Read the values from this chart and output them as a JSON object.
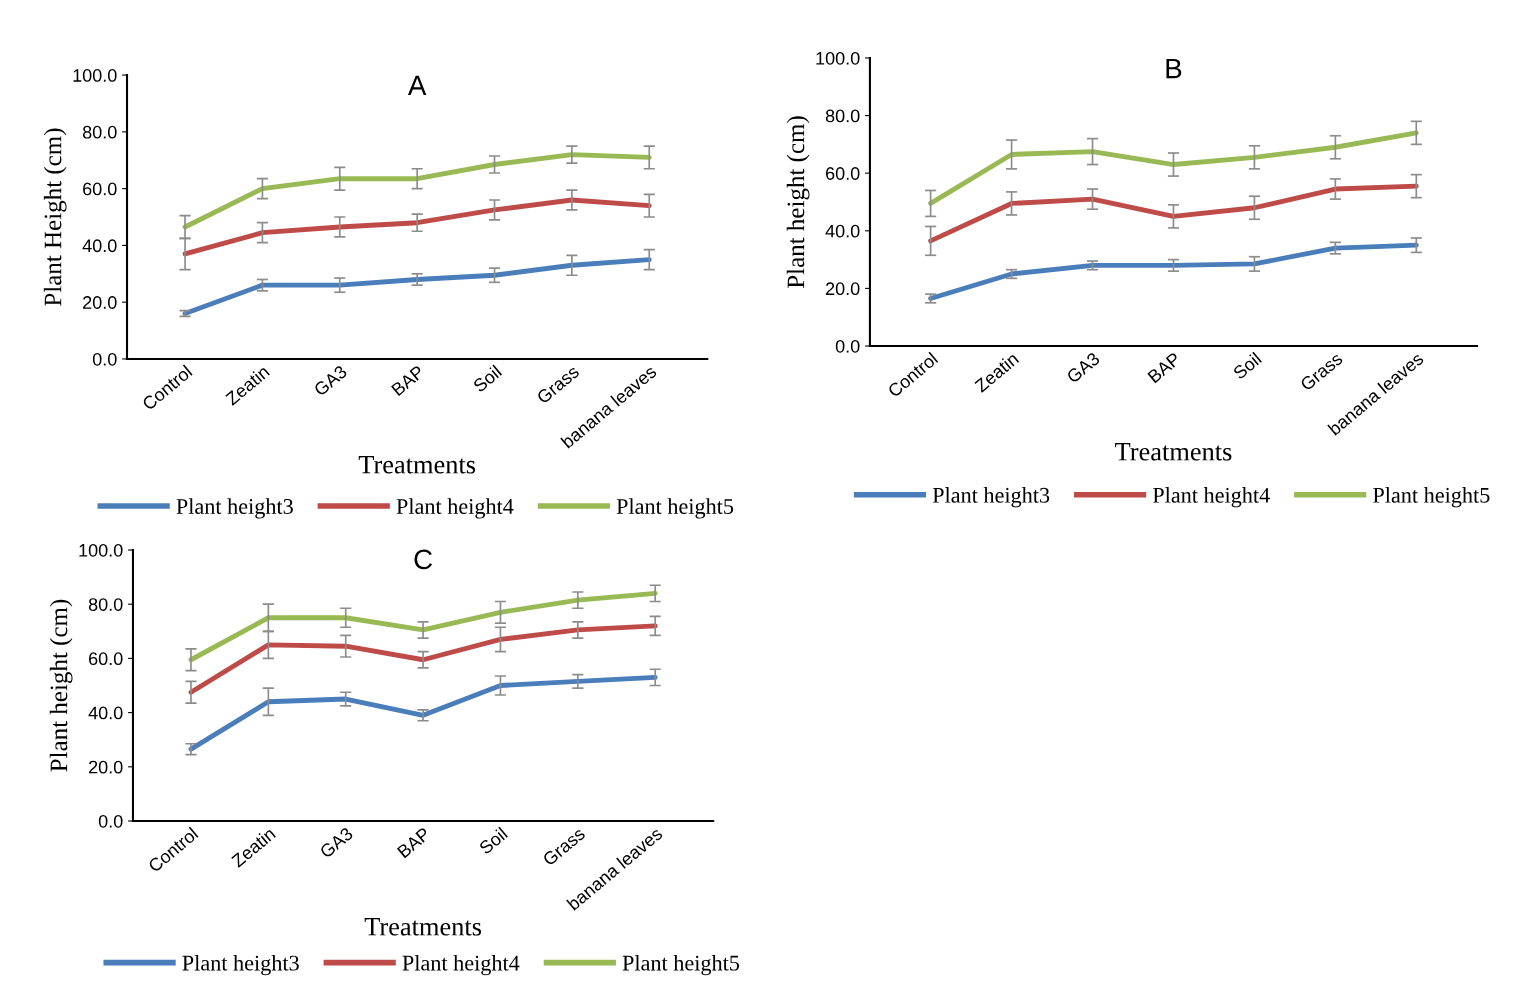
{
  "chart_data": [
    {
      "type": "line",
      "title": "A",
      "xlabel": "Treatments",
      "ylabel": "Plant Height (cm)",
      "categories": [
        "Control",
        "Zeatin",
        "GA3",
        "BAP",
        "Soil",
        "Grass",
        "banana leaves"
      ],
      "ylim": [
        0,
        100
      ],
      "yticks": [
        {
          "value": 0,
          "label": "0.0"
        },
        {
          "value": 20,
          "label": "20.0"
        },
        {
          "value": 40,
          "label": "40.0"
        },
        {
          "value": 60,
          "label": "60.0"
        },
        {
          "value": 80,
          "label": "80.0"
        },
        {
          "value": 100,
          "label": "100.0"
        }
      ],
      "grid": false,
      "legend": "bottom",
      "marker": "none",
      "line_style": "solid",
      "series": [
        {
          "name": "Plant height3",
          "color": "#4a7ebb",
          "values": [
            16,
            26,
            26,
            28,
            29.5,
            33,
            35
          ],
          "errors": [
            1,
            2,
            2.5,
            2,
            2.5,
            3.5,
            3.5
          ]
        },
        {
          "name": "Plant height4",
          "color": "#be4b48",
          "values": [
            37,
            44.5,
            46.5,
            48,
            52.5,
            56,
            54
          ],
          "errors": [
            5.5,
            3.5,
            3.5,
            3,
            3.5,
            3.5,
            4
          ]
        },
        {
          "name": "Plant height5",
          "color": "#98b954",
          "values": [
            46.5,
            60,
            63.5,
            63.5,
            68.5,
            72,
            71
          ],
          "errors": [
            4,
            3.5,
            4,
            3.5,
            3,
            3,
            4
          ]
        }
      ]
    },
    {
      "type": "line",
      "title": "B",
      "xlabel": "Treatments",
      "ylabel": "Plant height (cm)",
      "categories": [
        "Control",
        "Zeatin",
        "GA3",
        "BAP",
        "Soil",
        "Grass",
        "banana leaves"
      ],
      "ylim": [
        0,
        100
      ],
      "yticks": [
        {
          "value": 0,
          "label": "0.0"
        },
        {
          "value": 20,
          "label": "20.0"
        },
        {
          "value": 40,
          "label": "40.0"
        },
        {
          "value": 60,
          "label": "60.0"
        },
        {
          "value": 80,
          "label": "80.0"
        },
        {
          "value": 100,
          "label": "100.0"
        }
      ],
      "grid": false,
      "legend": "bottom",
      "marker": "none",
      "line_style": "solid",
      "series": [
        {
          "name": "Plant height3",
          "color": "#4a7ebb",
          "values": [
            16.5,
            25,
            28,
            28,
            28.5,
            34,
            35
          ],
          "errors": [
            1.5,
            1.5,
            1.5,
            2,
            2.5,
            2,
            2.5
          ]
        },
        {
          "name": "Plant height4",
          "color": "#be4b48",
          "values": [
            36.5,
            49.5,
            51,
            45,
            48,
            54.5,
            55.5
          ],
          "errors": [
            5,
            4,
            3.5,
            4,
            4,
            3.5,
            4
          ]
        },
        {
          "name": "Plant height5",
          "color": "#98b954",
          "values": [
            49.5,
            66.5,
            67.5,
            63,
            65.5,
            69,
            74
          ],
          "errors": [
            4.5,
            5,
            4.5,
            4,
            4,
            4,
            4
          ]
        }
      ]
    },
    {
      "type": "line",
      "title": "C",
      "xlabel": "Treatments",
      "ylabel": "Plant height (cm)",
      "categories": [
        "Control",
        "Zeatin",
        "GA3",
        "BAP",
        "Soil",
        "Grass",
        "banana leaves"
      ],
      "ylim": [
        0,
        100
      ],
      "yticks": [
        {
          "value": 0,
          "label": "0.0"
        },
        {
          "value": 20,
          "label": "20.0"
        },
        {
          "value": 40,
          "label": "40.0"
        },
        {
          "value": 60,
          "label": "60.0"
        },
        {
          "value": 80,
          "label": "80.0"
        },
        {
          "value": 100,
          "label": "100.0"
        }
      ],
      "grid": false,
      "legend": "bottom",
      "marker": "none",
      "line_style": "solid",
      "series": [
        {
          "name": "Plant height3",
          "color": "#4a7ebb",
          "values": [
            26.5,
            44,
            45,
            39,
            50,
            51.5,
            53
          ],
          "errors": [
            2,
            5,
            2.5,
            2,
            3.5,
            2.5,
            3
          ]
        },
        {
          "name": "Plant height4",
          "color": "#be4b48",
          "values": [
            47.5,
            65,
            64.5,
            59.5,
            67,
            70.5,
            72
          ],
          "errors": [
            4,
            5,
            4,
            3,
            4.5,
            3,
            3.5
          ]
        },
        {
          "name": "Plant height5",
          "color": "#98b954",
          "values": [
            59.5,
            75,
            75,
            70.5,
            77,
            81.5,
            84
          ],
          "errors": [
            4,
            5,
            3.5,
            3,
            4,
            3,
            3
          ]
        }
      ]
    }
  ]
}
